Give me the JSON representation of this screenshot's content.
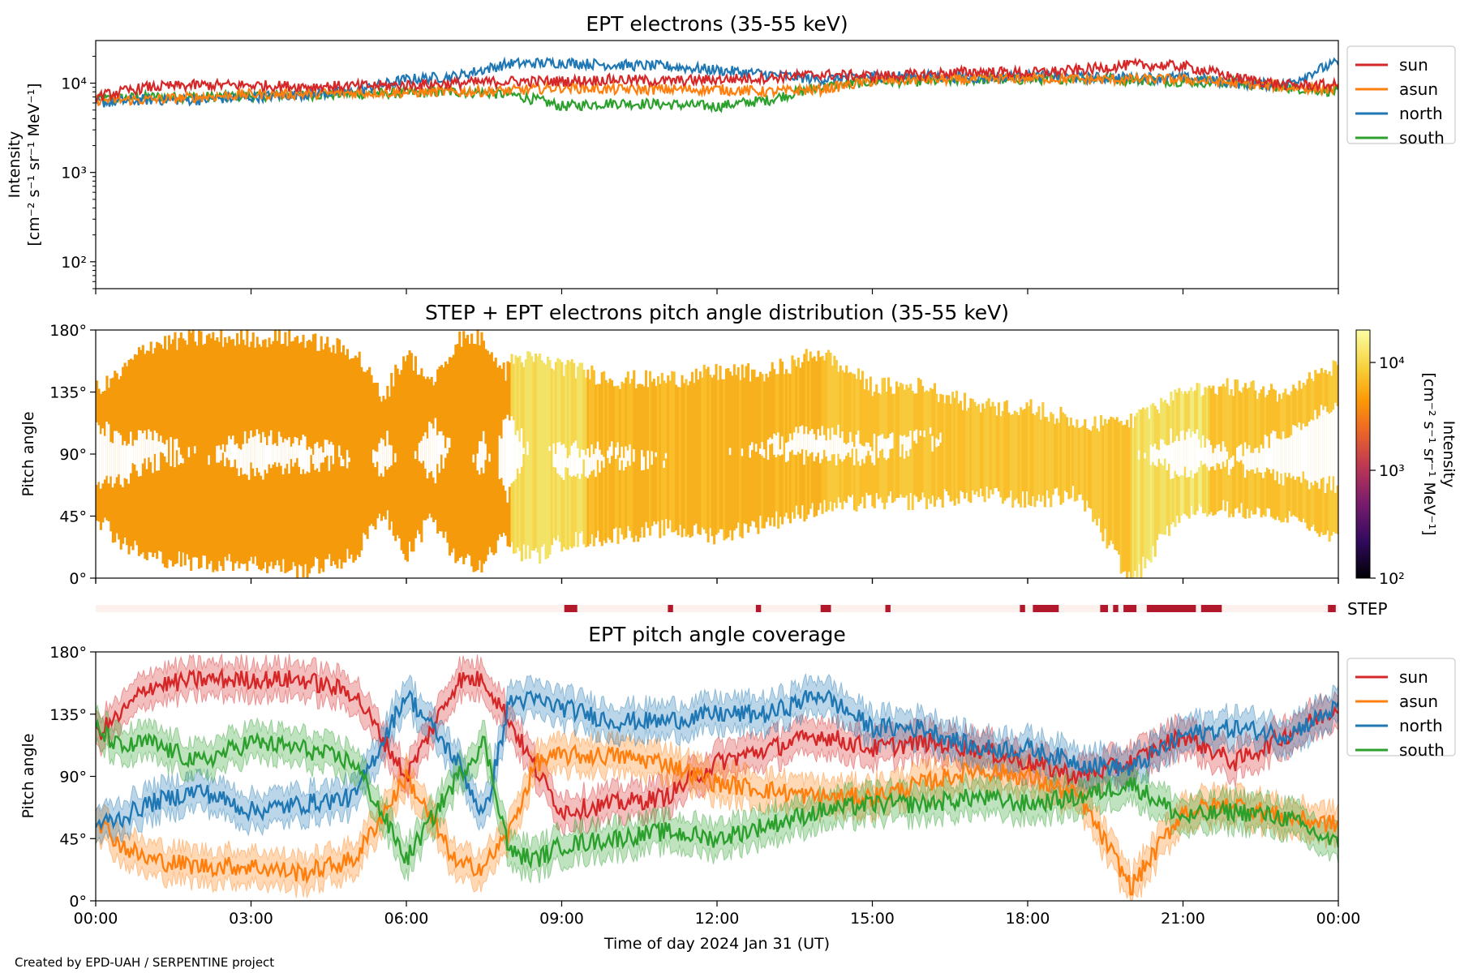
{
  "footer": "Created by EPD-UAH / SERPENTINE project",
  "colors": {
    "sun": "#d62728",
    "asun": "#ff7f0e",
    "north": "#1f77b4",
    "south": "#2ca02c",
    "step": "#b2182b",
    "step_bg": "#fdf1ee"
  },
  "chart_data": [
    {
      "type": "line",
      "title": "EPT electrons (35-55 keV)",
      "ylabel_lines": [
        "Intensity",
        "[cm⁻² s⁻¹ sr⁻¹ MeV⁻¹]"
      ],
      "yscale": "log",
      "ylim": [
        50,
        30000
      ],
      "yticks": [
        {
          "value": 100,
          "label": "10²"
        },
        {
          "value": 1000,
          "label": "10³"
        },
        {
          "value": 10000,
          "label": "10⁴"
        }
      ],
      "xlim_hours": [
        0,
        24
      ],
      "legend": [
        "sun",
        "asun",
        "north",
        "south"
      ],
      "legend_position": "outside-right",
      "series": [
        {
          "name": "sun",
          "x_hours": [
            0,
            1,
            2,
            3,
            4,
            5,
            6,
            7,
            8,
            9,
            10,
            11,
            12,
            13,
            14,
            15,
            16,
            17,
            18,
            19,
            20,
            21,
            22,
            23,
            24
          ],
          "values": [
            7000,
            9000,
            9500,
            9500,
            9200,
            9300,
            9500,
            10000,
            10500,
            10500,
            11000,
            10500,
            11000,
            11500,
            12500,
            12000,
            12500,
            13500,
            13000,
            14000,
            16000,
            15500,
            11500,
            9500,
            9500
          ]
        },
        {
          "name": "asun",
          "x_hours": [
            0,
            1,
            2,
            3,
            4,
            5,
            6,
            7,
            8,
            9,
            10,
            11,
            12,
            13,
            14,
            15,
            16,
            17,
            18,
            19,
            20,
            21,
            22,
            23,
            24
          ],
          "values": [
            6500,
            6500,
            7000,
            7500,
            7600,
            7800,
            7900,
            8000,
            8200,
            9000,
            8500,
            8500,
            8500,
            8000,
            8500,
            10500,
            11000,
            11000,
            11500,
            11000,
            11000,
            11000,
            10000,
            9000,
            8500
          ]
        },
        {
          "name": "north",
          "x_hours": [
            0,
            1,
            2,
            3,
            4,
            5,
            6,
            7,
            8,
            9,
            10,
            11,
            12,
            13,
            14,
            15,
            16,
            17,
            18,
            19,
            20,
            21,
            22,
            23,
            24
          ],
          "values": [
            6000,
            6500,
            6500,
            7000,
            7500,
            8000,
            11000,
            12000,
            16500,
            17000,
            16000,
            15500,
            14000,
            12500,
            11000,
            12000,
            12000,
            11500,
            12000,
            11500,
            11500,
            11500,
            10000,
            9500,
            17000
          ]
        },
        {
          "name": "south",
          "x_hours": [
            0,
            1,
            2,
            3,
            4,
            5,
            6,
            7,
            8,
            9,
            10,
            11,
            12,
            13,
            14,
            15,
            16,
            17,
            18,
            19,
            20,
            21,
            22,
            23,
            24
          ],
          "values": [
            6500,
            7000,
            7000,
            7200,
            7400,
            7600,
            7800,
            8000,
            7500,
            5500,
            6000,
            5800,
            5500,
            6500,
            9000,
            10500,
            10500,
            11000,
            11000,
            11500,
            11000,
            10500,
            10000,
            9000,
            8000
          ]
        }
      ]
    },
    {
      "type": "heatmap",
      "title": "STEP + EPT electrons pitch angle distribution (35-55 keV)",
      "ylabel": "Pitch angle",
      "ylim": [
        0,
        180
      ],
      "yticks": [
        "0°",
        "45°",
        "90°",
        "135°",
        "180°"
      ],
      "xlim_hours": [
        0,
        24
      ],
      "colorbar": {
        "label_lines": [
          "Intensity",
          "[cm⁻² s⁻¹ sr⁻¹ MeV⁻¹]"
        ],
        "scale": "log",
        "range": [
          100,
          20000
        ],
        "ticks": [
          {
            "value": 100,
            "label": "10²"
          },
          {
            "value": 1000,
            "label": "10³"
          },
          {
            "value": 10000,
            "label": "10⁴"
          }
        ],
        "colormap": "inferno"
      },
      "note": "Pitch angle bands filled between pitch-angle coverage of the four telescopes"
    },
    {
      "type": "bar",
      "label": "STEP",
      "xlim_hours": [
        0,
        24
      ],
      "intervals_hours": [
        [
          9.05,
          9.3
        ],
        [
          11.05,
          11.15
        ],
        [
          12.75,
          12.85
        ],
        [
          14.0,
          14.2
        ],
        [
          15.25,
          15.35
        ],
        [
          17.85,
          17.95
        ],
        [
          18.1,
          18.6
        ],
        [
          19.4,
          19.55
        ],
        [
          19.65,
          19.75
        ],
        [
          19.85,
          20.1
        ],
        [
          20.3,
          21.25
        ],
        [
          21.35,
          21.75
        ],
        [
          23.8,
          23.95
        ]
      ]
    },
    {
      "type": "area",
      "title": "EPT pitch angle coverage",
      "ylabel": "Pitch angle",
      "xlabel": "Time of day 2024 Jan 31 (UT)",
      "ylim": [
        0,
        180
      ],
      "yticks": [
        "0°",
        "45°",
        "90°",
        "135°",
        "180°"
      ],
      "xlim_hours": [
        0,
        24
      ],
      "xticks": [
        "00:00",
        "03:00",
        "06:00",
        "09:00",
        "12:00",
        "15:00",
        "18:00",
        "21:00",
        "00:00"
      ],
      "legend": [
        "sun",
        "asun",
        "north",
        "south"
      ],
      "legend_position": "outside-right",
      "series": [
        {
          "name": "sun",
          "x_hours": [
            0,
            0.5,
            1,
            2,
            3,
            4,
            5,
            6,
            7,
            7.5,
            8,
            8.5,
            9,
            10,
            11,
            12,
            13,
            14,
            15,
            16,
            17,
            18,
            19,
            20,
            21,
            22,
            23,
            24
          ],
          "values": [
            120,
            135,
            155,
            160,
            160,
            160,
            150,
            90,
            160,
            160,
            130,
            95,
            65,
            70,
            75,
            100,
            110,
            120,
            110,
            115,
            110,
            100,
            90,
            100,
            120,
            100,
            120,
            140
          ]
        },
        {
          "name": "asun",
          "x_hours": [
            0,
            0.5,
            1,
            2,
            3,
            4,
            5,
            6,
            7,
            7.5,
            8,
            8.5,
            9,
            10,
            11,
            12,
            13,
            14,
            15,
            16,
            17,
            18,
            19,
            20,
            21,
            22,
            23,
            24
          ],
          "values": [
            60,
            40,
            30,
            25,
            25,
            20,
            30,
            90,
            25,
            25,
            50,
            100,
            105,
            105,
            100,
            85,
            80,
            75,
            75,
            85,
            95,
            90,
            75,
            10,
            65,
            70,
            60,
            55
          ]
        },
        {
          "name": "north",
          "x_hours": [
            0,
            0.5,
            1,
            2,
            3,
            4,
            5,
            6,
            7,
            7.5,
            8,
            8.5,
            9,
            10,
            11,
            12,
            13,
            14,
            15,
            16,
            17,
            18,
            19,
            20,
            21,
            22,
            23,
            24
          ],
          "values": [
            55,
            60,
            70,
            80,
            65,
            70,
            75,
            150,
            100,
            60,
            145,
            145,
            140,
            130,
            130,
            135,
            135,
            150,
            125,
            125,
            110,
            110,
            100,
            95,
            120,
            125,
            120,
            140
          ]
        },
        {
          "name": "south",
          "x_hours": [
            0,
            0.5,
            1,
            2,
            3,
            4,
            5,
            6,
            7,
            7.5,
            8,
            8.5,
            9,
            10,
            11,
            12,
            13,
            14,
            15,
            16,
            17,
            18,
            19,
            20,
            21,
            22,
            23,
            24
          ],
          "values": [
            125,
            110,
            115,
            100,
            115,
            110,
            100,
            30,
            90,
            115,
            35,
            30,
            40,
            45,
            50,
            45,
            55,
            65,
            70,
            70,
            75,
            70,
            75,
            85,
            60,
            65,
            60,
            40
          ]
        }
      ],
      "band_halfwidth_deg": 12
    }
  ]
}
